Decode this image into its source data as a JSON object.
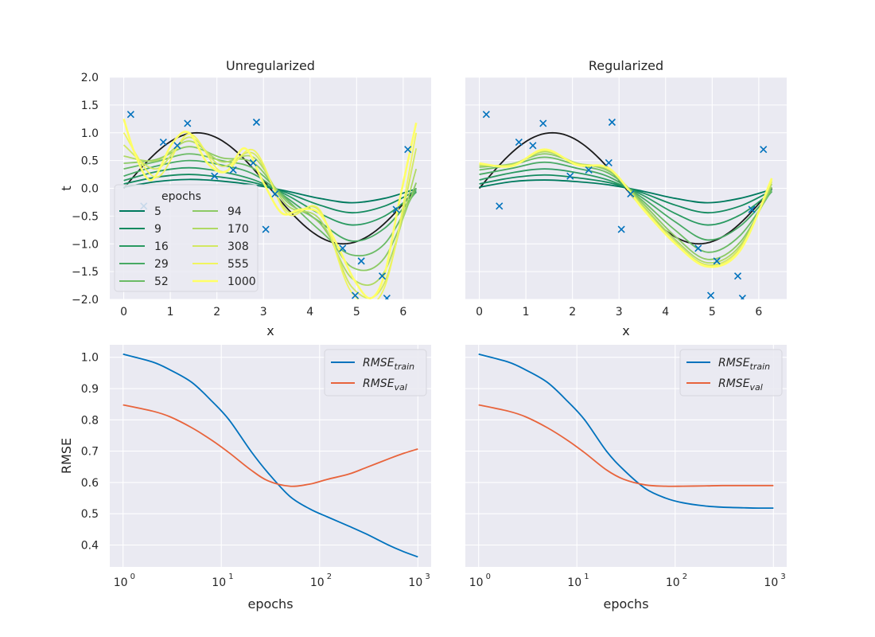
{
  "colors": {
    "panel_bg": "#EAEAF2",
    "grid": "#FFFFFF",
    "true_curve": "#1A1A1A",
    "points": "#0072BD",
    "train": "#0072BD",
    "val": "#E8643C",
    "epoch_colors": [
      "#007A5E",
      "#138A5F",
      "#2A9A61",
      "#47A963",
      "#6BBB65",
      "#8DCA65",
      "#B0D964",
      "#D2E862",
      "#F0F55E",
      "#FFFF66"
    ]
  },
  "chart_data": [
    {
      "type": "line",
      "title": "Unregularized",
      "xlabel": "x",
      "ylabel": "t",
      "xlim": [
        -0.3,
        6.6
      ],
      "ylim": [
        -2.0,
        2.0
      ],
      "xticks": [
        0,
        1,
        2,
        3,
        4,
        5,
        6
      ],
      "yticks": [
        -2.0,
        -1.5,
        -1.0,
        -0.5,
        0.0,
        0.5,
        1.0,
        1.5,
        2.0
      ],
      "ytick_labels": [
        "−2.0",
        "−1.5",
        "−1.0",
        "−0.5",
        "0.0",
        "0.5",
        "1.0",
        "1.5",
        "2.0"
      ],
      "xtick_labels": [
        "0",
        "1",
        "2",
        "3",
        "4",
        "5",
        "6"
      ],
      "grid": true,
      "points": {
        "x": [
          0.15,
          0.43,
          0.85,
          1.15,
          1.37,
          1.95,
          2.35,
          2.78,
          2.85,
          3.05,
          3.25,
          4.7,
          4.97,
          5.1,
          5.55,
          5.65,
          5.85,
          6.1
        ],
        "y": [
          1.33,
          -0.32,
          0.83,
          0.77,
          1.17,
          0.22,
          0.33,
          0.46,
          1.19,
          -0.74,
          -0.1,
          -1.08,
          -1.93,
          -1.31,
          -1.58,
          -1.98,
          -0.38,
          0.7
        ]
      },
      "true_curve": "sin(x)",
      "legend": {
        "title": "epochs",
        "location": "lower-left",
        "entries": [
          "5",
          "9",
          "16",
          "29",
          "52",
          "94",
          "170",
          "308",
          "555",
          "1000"
        ]
      },
      "fit_series": [
        {
          "name": "5",
          "x": [
            0,
            0.7,
            1.4,
            2.1,
            2.8,
            3.5,
            4.2,
            4.9,
            5.6,
            6.28
          ],
          "y": [
            0.02,
            0.12,
            0.16,
            0.13,
            0.06,
            -0.05,
            -0.18,
            -0.26,
            -0.18,
            -0.01
          ]
        },
        {
          "name": "9",
          "x": [
            0,
            0.7,
            1.4,
            2.1,
            2.8,
            3.5,
            4.2,
            4.9,
            5.6,
            6.28
          ],
          "y": [
            0.08,
            0.2,
            0.25,
            0.2,
            0.1,
            -0.08,
            -0.3,
            -0.44,
            -0.32,
            -0.04
          ]
        },
        {
          "name": "16",
          "x": [
            0,
            0.7,
            1.4,
            2.1,
            2.8,
            3.5,
            4.2,
            4.9,
            5.6,
            6.28
          ],
          "y": [
            0.14,
            0.3,
            0.37,
            0.3,
            0.15,
            -0.12,
            -0.45,
            -0.66,
            -0.5,
            -0.07
          ]
        },
        {
          "name": "29",
          "x": [
            0,
            0.7,
            1.4,
            2.1,
            2.8,
            3.5,
            4.2,
            4.9,
            5.6,
            6.28
          ],
          "y": [
            0.22,
            0.4,
            0.5,
            0.42,
            0.25,
            -0.17,
            -0.6,
            -0.95,
            -0.72,
            -0.06
          ]
        },
        {
          "name": "52",
          "x": [
            0,
            0.7,
            1.4,
            2.1,
            2.8,
            3.5,
            4.2,
            4.9,
            5.6,
            6.28
          ],
          "y": [
            0.35,
            0.48,
            0.62,
            0.5,
            0.35,
            -0.2,
            -0.75,
            -1.2,
            -1.0,
            0.0
          ]
        },
        {
          "name": "94",
          "x": [
            0,
            0.7,
            1.4,
            2.1,
            2.8,
            3.5,
            4.2,
            4.9,
            5.6,
            6.28
          ],
          "y": [
            0.45,
            0.52,
            0.75,
            0.55,
            0.45,
            -0.24,
            -0.62,
            -1.42,
            -1.25,
            0.1
          ]
        },
        {
          "name": "170",
          "x": [
            0,
            0.7,
            1.4,
            2.1,
            2.8,
            3.5,
            4.2,
            4.9,
            5.6,
            6.28
          ],
          "y": [
            0.58,
            0.5,
            0.85,
            0.48,
            0.55,
            -0.3,
            -0.55,
            -1.62,
            -1.5,
            0.35
          ]
        },
        {
          "name": "308",
          "x": [
            0,
            0.7,
            1.4,
            2.1,
            2.8,
            3.5,
            4.2,
            4.9,
            5.6,
            6.28
          ],
          "y": [
            0.78,
            0.35,
            0.92,
            0.4,
            0.62,
            -0.4,
            -0.4,
            -1.78,
            -1.7,
            0.72
          ]
        },
        {
          "name": "555",
          "x": [
            0,
            0.7,
            1.4,
            2.1,
            2.8,
            3.5,
            4.2,
            4.9,
            5.6,
            6.28
          ],
          "y": [
            1.0,
            0.2,
            0.98,
            0.3,
            0.68,
            -0.45,
            -0.38,
            -1.88,
            -1.78,
            1.0
          ]
        },
        {
          "name": "1000",
          "x": [
            0,
            0.25,
            0.6,
            1.05,
            1.4,
            1.8,
            2.2,
            2.6,
            3.0,
            3.4,
            3.8,
            4.2,
            4.6,
            4.95,
            5.3,
            5.6,
            5.9,
            6.28
          ],
          "y": [
            1.25,
            0.6,
            0.15,
            0.82,
            1.0,
            0.45,
            0.3,
            0.72,
            0.1,
            -0.45,
            -0.38,
            -0.45,
            -1.05,
            -1.65,
            -1.98,
            -1.55,
            -0.3,
            1.18
          ]
        }
      ]
    },
    {
      "type": "line",
      "title": "Regularized",
      "xlabel": "x",
      "ylabel": "",
      "xlim": [
        -0.3,
        6.6
      ],
      "ylim": [
        -2.0,
        2.0
      ],
      "xticks": [
        0,
        1,
        2,
        3,
        4,
        5,
        6
      ],
      "xtick_labels": [
        "0",
        "1",
        "2",
        "3",
        "4",
        "5",
        "6"
      ],
      "yticks": [
        -2.0,
        -1.5,
        -1.0,
        -0.5,
        0.0,
        0.5,
        1.0,
        1.5,
        2.0
      ],
      "ytick_labels": [],
      "grid": true,
      "points": {
        "x": [
          0.15,
          0.43,
          0.85,
          1.15,
          1.37,
          1.95,
          2.35,
          2.78,
          2.85,
          3.05,
          3.25,
          4.7,
          4.97,
          5.1,
          5.55,
          5.65,
          5.85,
          6.1
        ],
        "y": [
          1.33,
          -0.32,
          0.83,
          0.77,
          1.17,
          0.22,
          0.33,
          0.46,
          1.19,
          -0.74,
          -0.1,
          -1.08,
          -1.93,
          -1.31,
          -1.58,
          -1.98,
          -0.38,
          0.7
        ]
      },
      "true_curve": "sin(x)",
      "fit_series": [
        {
          "name": "5",
          "x": [
            0,
            0.7,
            1.4,
            2.1,
            2.8,
            3.5,
            4.2,
            4.9,
            5.6,
            6.28
          ],
          "y": [
            0.02,
            0.12,
            0.15,
            0.12,
            0.06,
            -0.05,
            -0.18,
            -0.26,
            -0.18,
            -0.02
          ]
        },
        {
          "name": "9",
          "x": [
            0,
            0.7,
            1.4,
            2.1,
            2.8,
            3.5,
            4.2,
            4.9,
            5.6,
            6.28
          ],
          "y": [
            0.08,
            0.19,
            0.24,
            0.19,
            0.1,
            -0.08,
            -0.3,
            -0.44,
            -0.32,
            -0.04
          ]
        },
        {
          "name": "16",
          "x": [
            0,
            0.7,
            1.4,
            2.1,
            2.8,
            3.5,
            4.2,
            4.9,
            5.6,
            6.28
          ],
          "y": [
            0.15,
            0.28,
            0.35,
            0.28,
            0.14,
            -0.12,
            -0.45,
            -0.66,
            -0.48,
            -0.06
          ]
        },
        {
          "name": "29",
          "x": [
            0,
            0.7,
            1.4,
            2.1,
            2.8,
            3.5,
            4.2,
            4.9,
            5.6,
            6.28
          ],
          "y": [
            0.25,
            0.36,
            0.47,
            0.36,
            0.2,
            -0.17,
            -0.6,
            -0.93,
            -0.68,
            -0.06
          ]
        },
        {
          "name": "52",
          "x": [
            0,
            0.7,
            1.4,
            2.1,
            2.8,
            3.5,
            4.2,
            4.9,
            5.6,
            6.28
          ],
          "y": [
            0.33,
            0.42,
            0.56,
            0.42,
            0.26,
            -0.22,
            -0.75,
            -1.15,
            -0.85,
            -0.04
          ]
        },
        {
          "name": "94",
          "x": [
            0,
            0.7,
            1.4,
            2.1,
            2.8,
            3.5,
            4.2,
            4.9,
            5.6,
            6.28
          ],
          "y": [
            0.38,
            0.44,
            0.62,
            0.45,
            0.3,
            -0.26,
            -0.86,
            -1.28,
            -0.97,
            0.02
          ]
        },
        {
          "name": "170",
          "x": [
            0,
            0.7,
            1.4,
            2.1,
            2.8,
            3.5,
            4.2,
            4.9,
            5.6,
            6.28
          ],
          "y": [
            0.41,
            0.43,
            0.66,
            0.45,
            0.33,
            -0.3,
            -0.92,
            -1.34,
            -1.03,
            0.08
          ]
        },
        {
          "name": "308",
          "x": [
            0,
            0.7,
            1.4,
            2.1,
            2.8,
            3.5,
            4.2,
            4.9,
            5.6,
            6.28
          ],
          "y": [
            0.43,
            0.42,
            0.68,
            0.44,
            0.34,
            -0.33,
            -0.96,
            -1.38,
            -1.07,
            0.12
          ]
        },
        {
          "name": "555",
          "x": [
            0,
            0.7,
            1.4,
            2.1,
            2.8,
            3.5,
            4.2,
            4.9,
            5.6,
            6.28
          ],
          "y": [
            0.44,
            0.41,
            0.69,
            0.43,
            0.35,
            -0.35,
            -0.98,
            -1.4,
            -1.1,
            0.15
          ]
        },
        {
          "name": "1000",
          "x": [
            0,
            0.7,
            1.4,
            2.1,
            2.8,
            3.5,
            4.2,
            4.9,
            5.6,
            6.28
          ],
          "y": [
            0.45,
            0.4,
            0.7,
            0.42,
            0.35,
            -0.36,
            -0.99,
            -1.41,
            -1.12,
            0.18
          ]
        }
      ]
    },
    {
      "type": "line",
      "title": "",
      "xlabel": "epochs",
      "ylabel": "RMSE",
      "xscale": "log",
      "xlim": [
        1,
        1000
      ],
      "ylim": [
        0.33,
        1.04
      ],
      "xticks": [
        1,
        10,
        100,
        1000
      ],
      "xtick_labels": [
        "10",
        "10",
        "10",
        "10"
      ],
      "xtick_exponents": [
        "0",
        "1",
        "2",
        "3"
      ],
      "yticks": [
        0.4,
        0.5,
        0.6,
        0.7,
        0.8,
        0.9,
        1.0
      ],
      "ytick_labels": [
        "0.4",
        "0.5",
        "0.6",
        "0.7",
        "0.8",
        "0.9",
        "1.0"
      ],
      "grid": true,
      "legend": {
        "location": "top-right",
        "entries": [
          {
            "base": "RMSE",
            "sub": "train"
          },
          {
            "base": "RMSE",
            "sub": "val"
          }
        ]
      },
      "series": [
        {
          "name": "RMSE_train",
          "x": [
            1,
            2,
            3,
            5,
            8,
            12,
            20,
            30,
            50,
            80,
            120,
            200,
            300,
            500,
            700,
            1000
          ],
          "y": [
            1.01,
            0.985,
            0.96,
            0.92,
            0.86,
            0.8,
            0.7,
            0.63,
            0.555,
            0.515,
            0.49,
            0.46,
            0.435,
            0.4,
            0.38,
            0.362
          ]
        },
        {
          "name": "RMSE_val",
          "x": [
            1,
            2,
            3,
            5,
            8,
            12,
            20,
            30,
            50,
            80,
            120,
            200,
            300,
            500,
            700,
            1000
          ],
          "y": [
            0.848,
            0.828,
            0.81,
            0.775,
            0.735,
            0.695,
            0.64,
            0.605,
            0.588,
            0.595,
            0.61,
            0.627,
            0.648,
            0.675,
            0.692,
            0.707
          ]
        }
      ]
    },
    {
      "type": "line",
      "title": "",
      "xlabel": "epochs",
      "ylabel": "",
      "xscale": "log",
      "xlim": [
        1,
        1000
      ],
      "ylim": [
        0.33,
        1.04
      ],
      "xticks": [
        1,
        10,
        100,
        1000
      ],
      "xtick_labels": [
        "10",
        "10",
        "10",
        "10"
      ],
      "xtick_exponents": [
        "0",
        "1",
        "2",
        "3"
      ],
      "yticks": [
        0.4,
        0.5,
        0.6,
        0.7,
        0.8,
        0.9,
        1.0
      ],
      "ytick_labels": [],
      "grid": true,
      "legend": {
        "location": "top-right",
        "entries": [
          {
            "base": "RMSE",
            "sub": "train"
          },
          {
            "base": "RMSE",
            "sub": "val"
          }
        ]
      },
      "series": [
        {
          "name": "RMSE_train",
          "x": [
            1,
            2,
            3,
            5,
            8,
            12,
            20,
            30,
            50,
            80,
            120,
            200,
            300,
            500,
            700,
            1000
          ],
          "y": [
            1.01,
            0.985,
            0.96,
            0.92,
            0.86,
            0.8,
            0.7,
            0.64,
            0.58,
            0.55,
            0.535,
            0.525,
            0.521,
            0.519,
            0.518,
            0.518
          ]
        },
        {
          "name": "RMSE_val",
          "x": [
            1,
            2,
            3,
            5,
            8,
            12,
            20,
            30,
            50,
            80,
            120,
            200,
            300,
            500,
            700,
            1000
          ],
          "y": [
            0.848,
            0.828,
            0.81,
            0.775,
            0.735,
            0.695,
            0.64,
            0.61,
            0.592,
            0.588,
            0.588,
            0.589,
            0.59,
            0.59,
            0.59,
            0.59
          ]
        }
      ]
    }
  ]
}
